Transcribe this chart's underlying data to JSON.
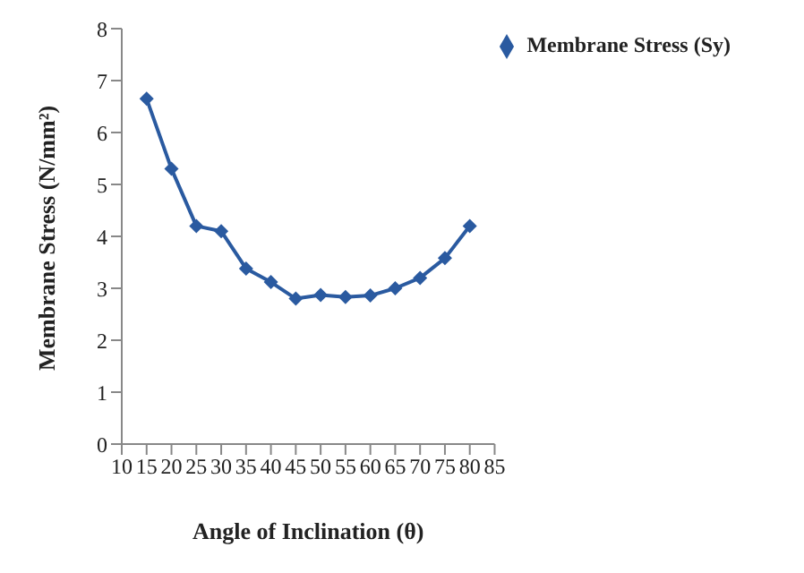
{
  "chart_data": {
    "type": "line",
    "xlabel": "Angle of Inclination (θ)",
    "ylabel": "Membrane Stress (N/mm²)",
    "x": [
      15,
      20,
      25,
      30,
      35,
      40,
      45,
      50,
      55,
      60,
      65,
      70,
      75,
      80
    ],
    "series": [
      {
        "name": "Membrane Stress (Sy)",
        "color": "#2a5aa0",
        "values": [
          6.65,
          5.3,
          4.2,
          4.1,
          3.38,
          3.12,
          2.8,
          2.87,
          2.83,
          2.86,
          3.0,
          3.2,
          3.58,
          4.2
        ]
      }
    ],
    "xlim": [
      10,
      85
    ],
    "xticks": [
      10,
      15,
      20,
      25,
      30,
      35,
      40,
      45,
      50,
      55,
      60,
      65,
      70,
      75,
      80,
      85
    ],
    "ylim": [
      0,
      8
    ],
    "yticks": [
      0,
      1,
      2,
      3,
      4,
      5,
      6,
      7,
      8
    ],
    "marker": "diamond",
    "line_style": "solid",
    "grid": false,
    "legend": "top right"
  }
}
